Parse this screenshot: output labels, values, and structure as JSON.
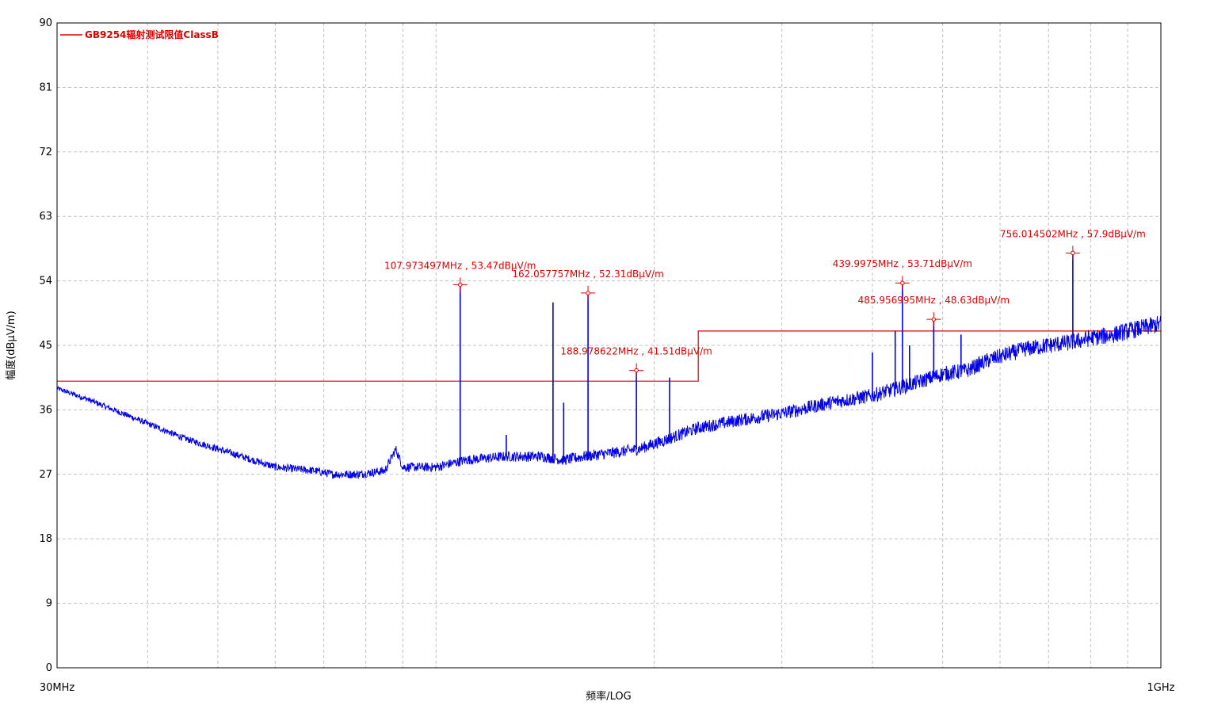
{
  "chart_data": {
    "type": "line",
    "title": "",
    "xlabel": "频率/LOG",
    "ylabel": "幅度(dBμV/m)",
    "xscale": "log",
    "xlim_mhz": [
      30,
      1000
    ],
    "x_tick_labels": [
      "30MHz",
      "1GHz"
    ],
    "ylim": [
      0,
      90
    ],
    "y_ticks": [
      0,
      9,
      18,
      27,
      36,
      45,
      54,
      63,
      72,
      81,
      90
    ],
    "grid": true,
    "legend_placement": "top-left",
    "colors": {
      "limit": "#e00000",
      "measurement": "#0000ee",
      "grid": "#c0c0c0"
    },
    "series": [
      {
        "name": "GB9254辐射测试限值ClassB",
        "type": "step",
        "points": [
          [
            30,
            40
          ],
          [
            230,
            40
          ],
          [
            230,
            47
          ],
          [
            1000,
            47
          ]
        ]
      },
      {
        "name": "",
        "type": "line",
        "baseline": [
          [
            30,
            39
          ],
          [
            33,
            37.5
          ],
          [
            38,
            35
          ],
          [
            45,
            32
          ],
          [
            52,
            30
          ],
          [
            60,
            28
          ],
          [
            68,
            27.5
          ],
          [
            72,
            27
          ],
          [
            78,
            27
          ],
          [
            85,
            27.5
          ],
          [
            88,
            30.5
          ],
          [
            90,
            28
          ],
          [
            100,
            28
          ],
          [
            110,
            29
          ],
          [
            125,
            29.5
          ],
          [
            140,
            29.5
          ],
          [
            150,
            29
          ],
          [
            160,
            29.5
          ],
          [
            175,
            30
          ],
          [
            190,
            30.5
          ],
          [
            210,
            32
          ],
          [
            230,
            33.5
          ],
          [
            260,
            34.5
          ],
          [
            300,
            35.5
          ],
          [
            350,
            37
          ],
          [
            400,
            38
          ],
          [
            450,
            39.5
          ],
          [
            500,
            41
          ],
          [
            540,
            41.5
          ],
          [
            580,
            43
          ],
          [
            650,
            44.5
          ],
          [
            700,
            45
          ],
          [
            760,
            45.5
          ],
          [
            800,
            46
          ],
          [
            860,
            46.5
          ],
          [
            900,
            47
          ],
          [
            950,
            47.5
          ],
          [
            1000,
            48
          ]
        ],
        "spikes": [
          [
            88,
            30.5
          ],
          [
            107.97,
            53.47
          ],
          [
            125,
            32.5
          ],
          [
            145,
            51
          ],
          [
            150,
            37
          ],
          [
            162.06,
            52.31
          ],
          [
            188.98,
            41.51
          ],
          [
            210,
            40.5
          ],
          [
            400,
            44
          ],
          [
            430,
            47
          ],
          [
            440,
            53.71
          ],
          [
            450,
            45
          ],
          [
            485.96,
            48.63
          ],
          [
            530,
            46.5
          ],
          [
            756.01,
            57.9
          ]
        ]
      }
    ],
    "markers": [
      {
        "freq_mhz": 107.973497,
        "level": 53.47,
        "label": "107.973497MHz , 53.47dBμV/m"
      },
      {
        "freq_mhz": 162.057757,
        "level": 52.31,
        "label": "162.057757MHz , 52.31dBμV/m"
      },
      {
        "freq_mhz": 188.978622,
        "level": 41.51,
        "label": "188.978622MHz , 41.51dBμV/m"
      },
      {
        "freq_mhz": 439.9975,
        "level": 53.71,
        "label": "439.9975MHz , 53.71dBμV/m"
      },
      {
        "freq_mhz": 485.956995,
        "level": 48.63,
        "label": "485.956995MHz , 48.63dBμV/m"
      },
      {
        "freq_mhz": 756.014502,
        "level": 57.9,
        "label": "756.014502MHz , 57.9dBμV/m"
      }
    ]
  }
}
